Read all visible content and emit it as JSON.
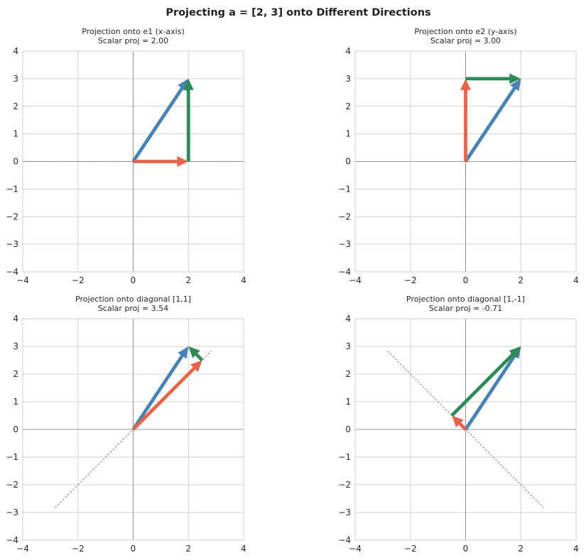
{
  "suptitle": "Projecting a = [2, 3] onto Different Directions",
  "colors": {
    "vector_a": "#4682b4",
    "projection": "#e8634a",
    "residual": "#2e8b57",
    "direction_line": "#808080",
    "grid": "#d0d0d0",
    "axis_line": "#808080",
    "frame": "#cccccc"
  },
  "chart_data": [
    {
      "type": "line",
      "title_lines": [
        "Projection onto e1 (x-axis)",
        "Scalar proj = 2.00"
      ],
      "xlim": [
        -4,
        4
      ],
      "ylim": [
        -4,
        4
      ],
      "xticks": [
        -4,
        -2,
        0,
        2,
        4
      ],
      "yticks": [
        -4,
        -3,
        -2,
        -1,
        0,
        1,
        2,
        3,
        4
      ],
      "grid": true,
      "direction_line": {
        "from": [
          -4,
          0
        ],
        "to": [
          4,
          0
        ]
      },
      "arrows": [
        {
          "role": "vector_a",
          "from": [
            0,
            0
          ],
          "to": [
            2,
            3
          ]
        },
        {
          "role": "projection",
          "from": [
            0,
            0
          ],
          "to": [
            2,
            0
          ]
        },
        {
          "role": "residual",
          "from": [
            2,
            0
          ],
          "to": [
            2,
            3
          ]
        }
      ]
    },
    {
      "type": "line",
      "title_lines": [
        "Projection onto e2 (y-axis)",
        "Scalar proj = 3.00"
      ],
      "xlim": [
        -4,
        4
      ],
      "ylim": [
        -4,
        4
      ],
      "xticks": [
        -4,
        -2,
        0,
        2,
        4
      ],
      "yticks": [
        -4,
        -3,
        -2,
        -1,
        0,
        1,
        2,
        3,
        4
      ],
      "grid": true,
      "direction_line": {
        "from": [
          0,
          -4
        ],
        "to": [
          0,
          4
        ]
      },
      "arrows": [
        {
          "role": "vector_a",
          "from": [
            0,
            0
          ],
          "to": [
            2,
            3
          ]
        },
        {
          "role": "projection",
          "from": [
            0,
            0
          ],
          "to": [
            0,
            3
          ]
        },
        {
          "role": "residual",
          "from": [
            0,
            3
          ],
          "to": [
            2,
            3
          ]
        }
      ]
    },
    {
      "type": "line",
      "title_lines": [
        "Projection onto diagonal [1,1]",
        "Scalar proj = 3.54"
      ],
      "xlim": [
        -4,
        4
      ],
      "ylim": [
        -4,
        4
      ],
      "xticks": [
        -4,
        -2,
        0,
        2,
        4
      ],
      "yticks": [
        -4,
        -3,
        -2,
        -1,
        0,
        1,
        2,
        3,
        4
      ],
      "grid": true,
      "direction_line": {
        "from": [
          -2.83,
          -2.83
        ],
        "to": [
          2.83,
          2.83
        ]
      },
      "arrows": [
        {
          "role": "vector_a",
          "from": [
            0,
            0
          ],
          "to": [
            2,
            3
          ]
        },
        {
          "role": "projection",
          "from": [
            0,
            0
          ],
          "to": [
            2.5,
            2.5
          ]
        },
        {
          "role": "residual",
          "from": [
            2.5,
            2.5
          ],
          "to": [
            2,
            3
          ]
        }
      ]
    },
    {
      "type": "line",
      "title_lines": [
        "Projection onto diagonal [1,-1]",
        "Scalar proj = -0.71"
      ],
      "xlim": [
        -4,
        4
      ],
      "ylim": [
        -4,
        4
      ],
      "xticks": [
        -4,
        -2,
        0,
        2,
        4
      ],
      "yticks": [
        -4,
        -3,
        -2,
        -1,
        0,
        1,
        2,
        3,
        4
      ],
      "grid": true,
      "direction_line": {
        "from": [
          -2.83,
          2.83
        ],
        "to": [
          2.83,
          -2.83
        ]
      },
      "arrows": [
        {
          "role": "vector_a",
          "from": [
            0,
            0
          ],
          "to": [
            2,
            3
          ]
        },
        {
          "role": "projection",
          "from": [
            0,
            0
          ],
          "to": [
            -0.5,
            0.5
          ]
        },
        {
          "role": "residual",
          "from": [
            -0.5,
            0.5
          ],
          "to": [
            2,
            3
          ]
        }
      ]
    }
  ]
}
